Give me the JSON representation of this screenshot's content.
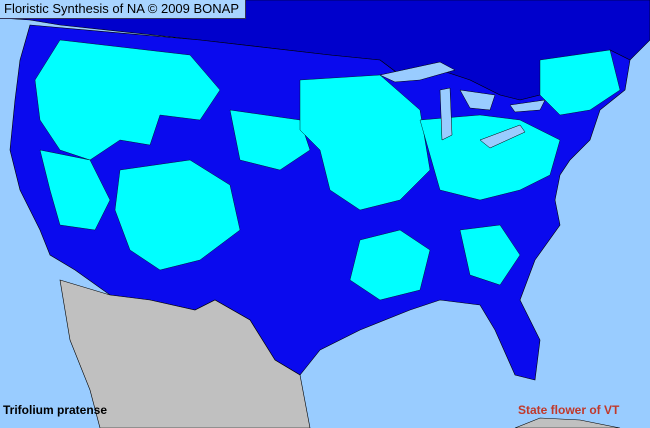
{
  "header": {
    "title": "Floristic Synthesis of NA © 2009 BONAP"
  },
  "map": {
    "species": "Trifolium pratense",
    "note": "State flower of VT",
    "colors": {
      "ocean": "#99ccff",
      "present_county": "#00ffff",
      "present_state": "#0000ee",
      "canada": "#0000cc",
      "mexico": "#c0c0c0",
      "lakes": "#99ccff"
    }
  }
}
